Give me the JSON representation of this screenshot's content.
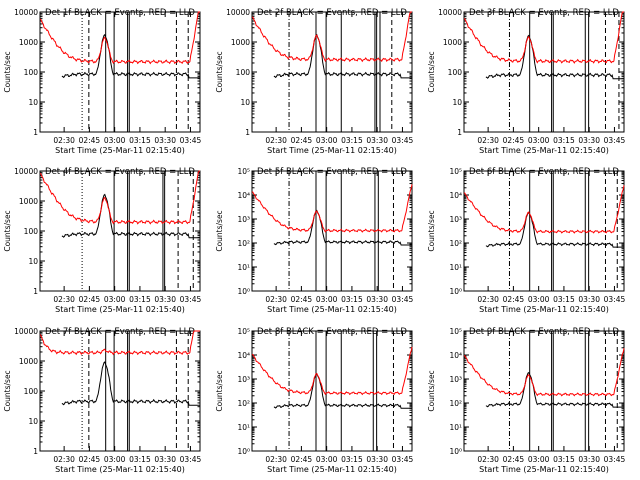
{
  "chart_data": [
    {
      "type": "line",
      "title": "Det 1f BLACK = Events, RED = LLD",
      "xlabel": "Start Time (25-Mar-11 02:15:40)",
      "ylabel": "Counts/sec",
      "ylog": true,
      "yticks": [
        1,
        10,
        100,
        1000,
        10000
      ],
      "ytick_labels": [
        "1",
        "10",
        "100",
        "1000",
        "10000"
      ],
      "ylim": [
        1,
        10000
      ],
      "xticks": [
        "02:30",
        "02:45",
        "03:00",
        "03:15",
        "03:30",
        "03:45"
      ],
      "xlim_min": [
        14,
        95
      ],
      "series": [
        {
          "name": "Events",
          "color": "#000000",
          "profile": "events",
          "level": 85
        },
        {
          "name": "LLD",
          "color": "#ff0000",
          "profile": "lld",
          "level": 220
        }
      ],
      "vlines": [
        {
          "x": 25,
          "style": "dotted"
        },
        {
          "x": 29,
          "style": "dashed"
        },
        {
          "x": 39,
          "style": "solid"
        },
        {
          "x": 44,
          "style": "solid"
        },
        {
          "x": 52,
          "style": "solid"
        },
        {
          "x": 53,
          "style": "solid"
        },
        {
          "x": 81,
          "style": "dashed"
        },
        {
          "x": 88,
          "style": "dashed"
        }
      ]
    },
    {
      "type": "line",
      "title": "Det 2f BLACK = Events, RED = LLD",
      "xlabel": "Start Time (25-Mar-11 02:15:40)",
      "ylabel": "Counts/sec",
      "ylog": true,
      "yticks": [
        1,
        10,
        100,
        1000,
        10000
      ],
      "ytick_labels": [
        "1",
        "10",
        "100",
        "1000",
        "10000"
      ],
      "ylim": [
        1,
        10000
      ],
      "xticks": [
        "02:30",
        "02:45",
        "03:00",
        "03:15",
        "03:30",
        "03:45"
      ],
      "xlim_min": [
        14,
        95
      ],
      "series": [
        {
          "name": "Events",
          "color": "#000000",
          "profile": "events",
          "level": 85
        },
        {
          "name": "LLD",
          "color": "#ff0000",
          "profile": "lld",
          "level": 260
        }
      ],
      "vlines": [
        {
          "x": 22,
          "style": "dashdot"
        },
        {
          "x": 38,
          "style": "solid"
        },
        {
          "x": 44,
          "style": "solid"
        },
        {
          "x": 53,
          "style": "solid"
        },
        {
          "x": 73,
          "style": "solid"
        },
        {
          "x": 74,
          "style": "solid"
        },
        {
          "x": 76,
          "style": "solid"
        },
        {
          "x": 83,
          "style": "dashed"
        }
      ]
    },
    {
      "type": "line",
      "title": "Det 3f BLACK = Events, RED = LLD",
      "xlabel": "Start Time (25-Mar-11 02:15:40)",
      "ylabel": "Counts/sec",
      "ylog": true,
      "yticks": [
        1,
        10,
        100,
        1000,
        10000
      ],
      "ytick_labels": [
        "1",
        "10",
        "100",
        "1000",
        "10000"
      ],
      "ylim": [
        1,
        10000
      ],
      "xticks": [
        "02:30",
        "02:45",
        "03:00",
        "03:15",
        "03:30",
        "03:45"
      ],
      "xlim_min": [
        14,
        95
      ],
      "series": [
        {
          "name": "Events",
          "color": "#000000",
          "profile": "events",
          "level": 80
        },
        {
          "name": "LLD",
          "color": "#ff0000",
          "profile": "lld",
          "level": 230
        }
      ],
      "vlines": [
        {
          "x": 27,
          "style": "dashdot"
        },
        {
          "x": 39,
          "style": "solid"
        },
        {
          "x": 52,
          "style": "solid"
        },
        {
          "x": 53,
          "style": "solid"
        },
        {
          "x": 72,
          "style": "solid"
        },
        {
          "x": 74,
          "style": "solid"
        },
        {
          "x": 84,
          "style": "dashed"
        },
        {
          "x": 92,
          "style": "dashed"
        }
      ]
    },
    {
      "type": "line",
      "title": "Det 4f BLACK = Events, RED = LLD",
      "xlabel": "Start Time (25-Mar-11 02:15:40)",
      "ylabel": "Counts/sec",
      "ylog": true,
      "yticks": [
        1,
        10,
        100,
        1000,
        10000
      ],
      "ytick_labels": [
        "1",
        "10",
        "100",
        "1000",
        "10000"
      ],
      "ylim": [
        1,
        10000
      ],
      "xticks": [
        "02:30",
        "02:45",
        "03:00",
        "03:15",
        "03:30",
        "03:45"
      ],
      "xlim_min": [
        14,
        95
      ],
      "series": [
        {
          "name": "Events",
          "color": "#000000",
          "profile": "events",
          "level": 80
        },
        {
          "name": "LLD",
          "color": "#ff0000",
          "profile": "lld_decay",
          "level": 200
        }
      ],
      "vlines": [
        {
          "x": 25,
          "style": "dotted"
        },
        {
          "x": 44,
          "style": "solid"
        },
        {
          "x": 52,
          "style": "solid"
        },
        {
          "x": 53,
          "style": "solid"
        },
        {
          "x": 73,
          "style": "solid"
        },
        {
          "x": 74,
          "style": "solid"
        },
        {
          "x": 82,
          "style": "dashed"
        },
        {
          "x": 91,
          "style": "dashed"
        }
      ]
    },
    {
      "type": "line",
      "title": "Det 5f BLACK = Events, RED = LLD",
      "xlabel": "Start Time (25-Mar-11 02:15:40)",
      "ylabel": "Counts/sec",
      "ylog": true,
      "yticks": [
        1,
        10,
        100,
        1000,
        10000,
        100000
      ],
      "ytick_labels": [
        "10⁰",
        "10¹",
        "10²",
        "10³",
        "10⁴",
        "10⁵"
      ],
      "ylim": [
        1,
        100000
      ],
      "xticks": [
        "02:30",
        "02:45",
        "03:00",
        "03:15",
        "03:30",
        "03:45"
      ],
      "xlim_min": [
        14,
        95
      ],
      "series": [
        {
          "name": "Events",
          "color": "#000000",
          "profile": "events",
          "level": 110
        },
        {
          "name": "LLD",
          "color": "#ff0000",
          "profile": "lld_decay",
          "level": 330
        }
      ],
      "vlines": [
        {
          "x": 22,
          "style": "dashdot"
        },
        {
          "x": 38,
          "style": "solid"
        },
        {
          "x": 44,
          "style": "solid"
        },
        {
          "x": 53,
          "style": "solid"
        },
        {
          "x": 73,
          "style": "solid"
        },
        {
          "x": 75,
          "style": "solid"
        },
        {
          "x": 84,
          "style": "dashed"
        }
      ]
    },
    {
      "type": "line",
      "title": "Det 6f BLACK = Events, RED = LLD",
      "xlabel": "Start Time (25-Mar-11 02:15:40)",
      "ylabel": "Counts/sec",
      "ylog": true,
      "yticks": [
        1,
        10,
        100,
        1000,
        10000,
        100000
      ],
      "ytick_labels": [
        "10⁰",
        "10¹",
        "10²",
        "10³",
        "10⁴",
        "10⁵"
      ],
      "ylim": [
        1,
        100000
      ],
      "xticks": [
        "02:30",
        "02:45",
        "03:00",
        "03:15",
        "03:30",
        "03:45"
      ],
      "xlim_min": [
        14,
        95
      ],
      "series": [
        {
          "name": "Events",
          "color": "#000000",
          "profile": "events",
          "level": 90
        },
        {
          "name": "LLD",
          "color": "#ff0000",
          "profile": "lld_decay",
          "level": 300
        }
      ],
      "vlines": [
        {
          "x": 27,
          "style": "dashdot"
        },
        {
          "x": 39,
          "style": "solid"
        },
        {
          "x": 52,
          "style": "solid"
        },
        {
          "x": 53,
          "style": "solid"
        },
        {
          "x": 72,
          "style": "solid"
        },
        {
          "x": 74,
          "style": "solid"
        },
        {
          "x": 84,
          "style": "dashed"
        },
        {
          "x": 91,
          "style": "dashed"
        }
      ]
    },
    {
      "type": "line",
      "title": "Det 7f BLACK = Events, RED = LLD",
      "xlabel": "Start Time (25-Mar-11 02:15:40)",
      "ylabel": "Counts/sec",
      "ylog": true,
      "yticks": [
        1,
        10,
        100,
        1000,
        10000
      ],
      "ytick_labels": [
        "1",
        "10",
        "100",
        "1000",
        "10000"
      ],
      "ylim": [
        1,
        10000
      ],
      "xticks": [
        "02:30",
        "02:45",
        "03:00",
        "03:15",
        "03:30",
        "03:45"
      ],
      "xlim_min": [
        14,
        95
      ],
      "series": [
        {
          "name": "Events",
          "color": "#000000",
          "profile": "events",
          "level": 45
        },
        {
          "name": "LLD",
          "color": "#ff0000",
          "profile": "lld_flat",
          "level": 1900
        }
      ],
      "vlines": [
        {
          "x": 25,
          "style": "dotted"
        },
        {
          "x": 29,
          "style": "dashed"
        },
        {
          "x": 39,
          "style": "solid"
        },
        {
          "x": 44,
          "style": "solid"
        },
        {
          "x": 52,
          "style": "solid"
        },
        {
          "x": 53,
          "style": "solid"
        },
        {
          "x": 81,
          "style": "dashed"
        },
        {
          "x": 88,
          "style": "dashed"
        }
      ]
    },
    {
      "type": "line",
      "title": "Det 8f BLACK = Events, RED = LLD",
      "xlabel": "Start Time (25-Mar-11 02:15:40)",
      "ylabel": "Counts/sec",
      "ylog": true,
      "yticks": [
        1,
        10,
        100,
        1000,
        10000,
        100000
      ],
      "ytick_labels": [
        "10⁰",
        "10¹",
        "10²",
        "10³",
        "10⁴",
        "10⁵"
      ],
      "ylim": [
        1,
        100000
      ],
      "xticks": [
        "02:30",
        "02:45",
        "03:00",
        "03:15",
        "03:30",
        "03:45"
      ],
      "xlim_min": [
        14,
        95
      ],
      "series": [
        {
          "name": "Events",
          "color": "#000000",
          "profile": "events",
          "level": 80
        },
        {
          "name": "LLD",
          "color": "#ff0000",
          "profile": "lld_decay",
          "level": 260
        }
      ],
      "vlines": [
        {
          "x": 22,
          "style": "dashdot"
        },
        {
          "x": 38,
          "style": "solid"
        },
        {
          "x": 44,
          "style": "solid"
        },
        {
          "x": 53,
          "style": "solid"
        },
        {
          "x": 72,
          "style": "solid"
        },
        {
          "x": 74,
          "style": "solid"
        },
        {
          "x": 84,
          "style": "dashed"
        }
      ]
    },
    {
      "type": "line",
      "title": "Det 9f BLACK = Events, RED = LLD",
      "xlabel": "Start Time (25-Mar-11 02:15:40)",
      "ylabel": "Counts/sec",
      "ylog": true,
      "yticks": [
        1,
        10,
        100,
        1000,
        10000,
        100000
      ],
      "ytick_labels": [
        "10⁰",
        "10¹",
        "10²",
        "10³",
        "10⁴",
        "10⁵"
      ],
      "ylim": [
        1,
        100000
      ],
      "xticks": [
        "02:30",
        "02:45",
        "03:00",
        "03:15",
        "03:30",
        "03:45"
      ],
      "xlim_min": [
        14,
        95
      ],
      "series": [
        {
          "name": "Events",
          "color": "#000000",
          "profile": "events",
          "level": 90
        },
        {
          "name": "LLD",
          "color": "#ff0000",
          "profile": "lld_decay",
          "level": 230
        }
      ],
      "vlines": [
        {
          "x": 27,
          "style": "dashdot"
        },
        {
          "x": 39,
          "style": "solid"
        },
        {
          "x": 52,
          "style": "solid"
        },
        {
          "x": 53,
          "style": "solid"
        },
        {
          "x": 72,
          "style": "solid"
        },
        {
          "x": 74,
          "style": "solid"
        },
        {
          "x": 84,
          "style": "dashed"
        },
        {
          "x": 91,
          "style": "dashed"
        }
      ]
    }
  ]
}
